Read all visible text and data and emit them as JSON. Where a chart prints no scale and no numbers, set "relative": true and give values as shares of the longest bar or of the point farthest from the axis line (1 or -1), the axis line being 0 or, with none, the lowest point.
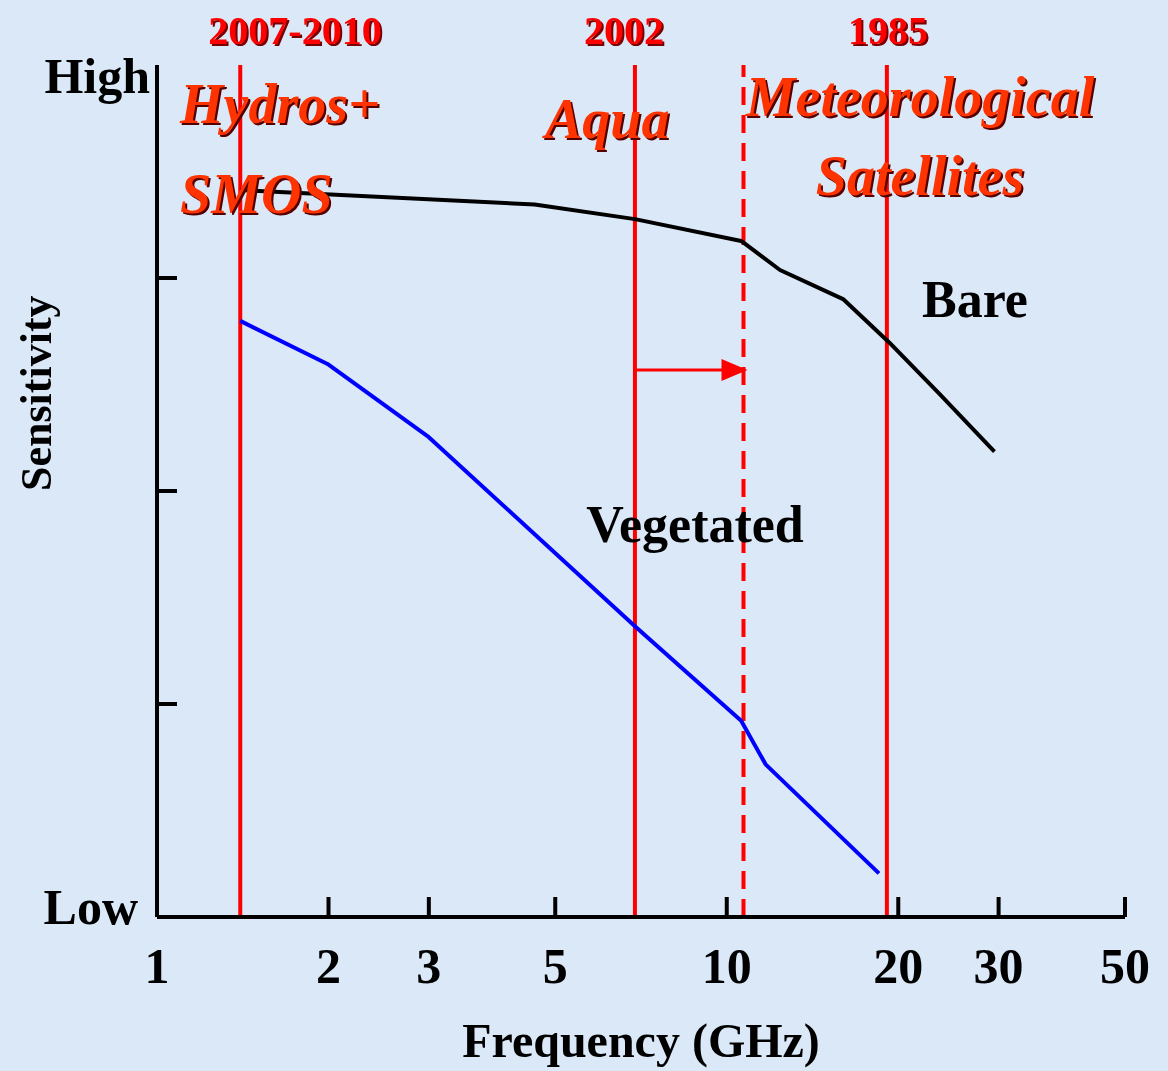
{
  "chart_data": {
    "type": "line",
    "xlabel": "Frequency (GHz)",
    "ylabel": "Sensitivity",
    "log": "x",
    "xlim": [
      1,
      50
    ],
    "xticks": [
      1,
      2,
      3,
      5,
      10,
      20,
      30,
      50
    ],
    "relative": true,
    "grid": false,
    "legend": false,
    "marker": "none",
    "line_style": "solid",
    "series": [
      {
        "name": "Bare",
        "color": "#000000",
        "x": [
          1.4,
          4.6,
          6.9,
          10.6,
          12.4,
          16,
          19.3,
          23.6,
          29.5
        ],
        "values": [
          1,
          0.98,
          0.96,
          0.93,
          0.89,
          0.85,
          0.79,
          0.72,
          0.64
        ]
      },
      {
        "name": "Vegetated",
        "color": "#0000ff",
        "x": [
          1.4,
          2,
          3,
          6.9,
          10.6,
          11.7,
          18.5
        ],
        "values": [
          0.82,
          0.76,
          0.66,
          0.4,
          0.27,
          0.21,
          0.06
        ]
      }
    ],
    "ref_lines": [
      {
        "axis": "x",
        "value": 1.4,
        "color": "#ff0000"
      },
      {
        "axis": "x",
        "value": 6.9,
        "color": "#ff0000"
      },
      {
        "axis": "x",
        "value": 10.7,
        "color": "#ff0000",
        "line_style": "dashed"
      },
      {
        "axis": "x",
        "value": 19.1,
        "color": "#ff0000"
      }
    ],
    "annotations": [
      "High",
      "Low",
      "2007-2010",
      "2002",
      "1985",
      "Hydros+ SMOS",
      "Aqua",
      "Meteorological Satellites"
    ]
  }
}
